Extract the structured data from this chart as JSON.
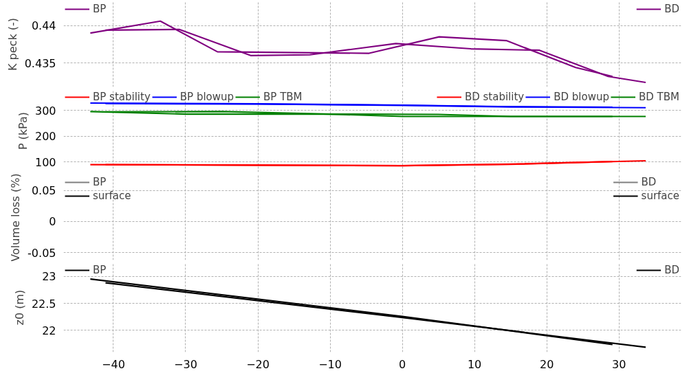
{
  "chart_data": [
    {
      "type": "line",
      "ylabel": "K peck (-)",
      "xlim": [
        -46.9,
        38.6
      ],
      "xticks": [
        {
          "value": -40,
          "label": null
        },
        {
          "value": -30,
          "label": null
        },
        {
          "value": -20,
          "label": null
        },
        {
          "value": -10,
          "label": null
        },
        {
          "value": 0,
          "label": null
        },
        {
          "value": 10,
          "label": null
        },
        {
          "value": 20,
          "label": null
        },
        {
          "value": 30,
          "label": null
        }
      ],
      "ylim": [
        0.4318,
        0.4432
      ],
      "yticks": [
        0.435,
        0.44
      ],
      "grid": true,
      "legend": "top",
      "tick_labels": "y",
      "series": [
        {
          "name": "BP",
          "color": "#800080",
          "x": [
            -43.2,
            -33.5,
            -25.6,
            -4.6,
            5.1,
            14.4,
            24.0,
            29.1
          ],
          "values": [
            0.439,
            0.4406,
            0.4365,
            0.4363,
            0.4385,
            0.438,
            0.4344,
            0.4332
          ]
        },
        {
          "name": "BD",
          "color": "#800080",
          "x": [
            -41.1,
            -30.9,
            -21.0,
            -12.8,
            -0.9,
            9.5,
            19.0,
            28.5,
            33.7
          ],
          "values": [
            0.4394,
            0.4395,
            0.436,
            0.4361,
            0.4376,
            0.4369,
            0.4367,
            0.4332,
            0.4324
          ]
        }
      ]
    },
    {
      "type": "line",
      "ylabel": "P (kPa)",
      "xlim": [
        -46.9,
        38.6
      ],
      "xticks": [
        {
          "value": -40,
          "label": null
        },
        {
          "value": -30,
          "label": null
        },
        {
          "value": -20,
          "label": null
        },
        {
          "value": -10,
          "label": null
        },
        {
          "value": 0,
          "label": null
        },
        {
          "value": 10,
          "label": null
        },
        {
          "value": 20,
          "label": null
        },
        {
          "value": 30,
          "label": null
        }
      ],
      "ylim": [
        60,
        380
      ],
      "yticks": [
        100,
        200,
        300
      ],
      "grid": true,
      "legend": "top",
      "tick_labels": "y",
      "series": [
        {
          "name": "BP stability",
          "color": "#ff0000",
          "x": [
            -43.2,
            -20,
            0,
            15,
            29.1
          ],
          "values": [
            89,
            87,
            85,
            90,
            101
          ]
        },
        {
          "name": "BP blowup",
          "color": "#0000ff",
          "x": [
            -43.2,
            -20,
            0,
            15,
            29.1
          ],
          "values": [
            328,
            325,
            320,
            314,
            312
          ]
        },
        {
          "name": "BP TBM",
          "color": "#008000",
          "x": [
            -43.2,
            -30,
            -10,
            0,
            15,
            29.1
          ],
          "values": [
            295,
            285,
            285,
            276,
            276,
            276
          ]
        },
        {
          "name": "BD stability",
          "color": "#ff0000",
          "x": [
            -41.1,
            -20,
            0,
            15,
            33.7
          ],
          "values": [
            89,
            87,
            85,
            91,
            104
          ]
        },
        {
          "name": "BD blowup",
          "color": "#0000ff",
          "x": [
            -41.1,
            -20,
            0,
            15,
            33.7
          ],
          "values": [
            326,
            324,
            319,
            313,
            310
          ]
        },
        {
          "name": "BD TBM",
          "color": "#008000",
          "x": [
            -41.1,
            -25,
            -10,
            5,
            15,
            33.7
          ],
          "values": [
            294,
            295,
            285,
            284,
            276,
            276
          ]
        }
      ]
    },
    {
      "type": "line",
      "ylabel": "Volume loss (%)",
      "ylim": [
        -0.062,
        0.075
      ],
      "yticks": [
        -0.05,
        0,
        0.05
      ],
      "grid": true,
      "legend": "top",
      "tick_labels": "y",
      "series": [
        {
          "name": "BP",
          "color": "#808080",
          "values": [
            null
          ]
        },
        {
          "name": "surface",
          "color": "#000000",
          "values": [
            null
          ]
        },
        {
          "name": "BD",
          "color": "#808080",
          "values": [
            null
          ]
        },
        {
          "name": "surface",
          "color": "#000000",
          "values": [
            null
          ]
        }
      ]
    },
    {
      "type": "line",
      "ylabel": "z0 (m)",
      "xlim": [
        -46.9,
        38.6
      ],
      "xticks": [
        {
          "value": -40,
          "label": "−40"
        },
        {
          "value": -30,
          "label": "−30"
        },
        {
          "value": -20,
          "label": "−20"
        },
        {
          "value": -10,
          "label": "−10"
        },
        0,
        10,
        20,
        30
      ],
      "ylim": [
        21.6,
        23.25
      ],
      "yticks": [
        22,
        22.5,
        23
      ],
      "grid": true,
      "legend": "top",
      "series": [
        {
          "name": "BP",
          "color": "#000000",
          "x": [
            -43.2,
            0,
            29.1
          ],
          "values": [
            22.95,
            22.26,
            21.74
          ]
        },
        {
          "name": "BD",
          "color": "#000000",
          "x": [
            -41.1,
            0,
            33.7
          ],
          "values": [
            22.88,
            22.24,
            21.69
          ]
        }
      ]
    }
  ]
}
